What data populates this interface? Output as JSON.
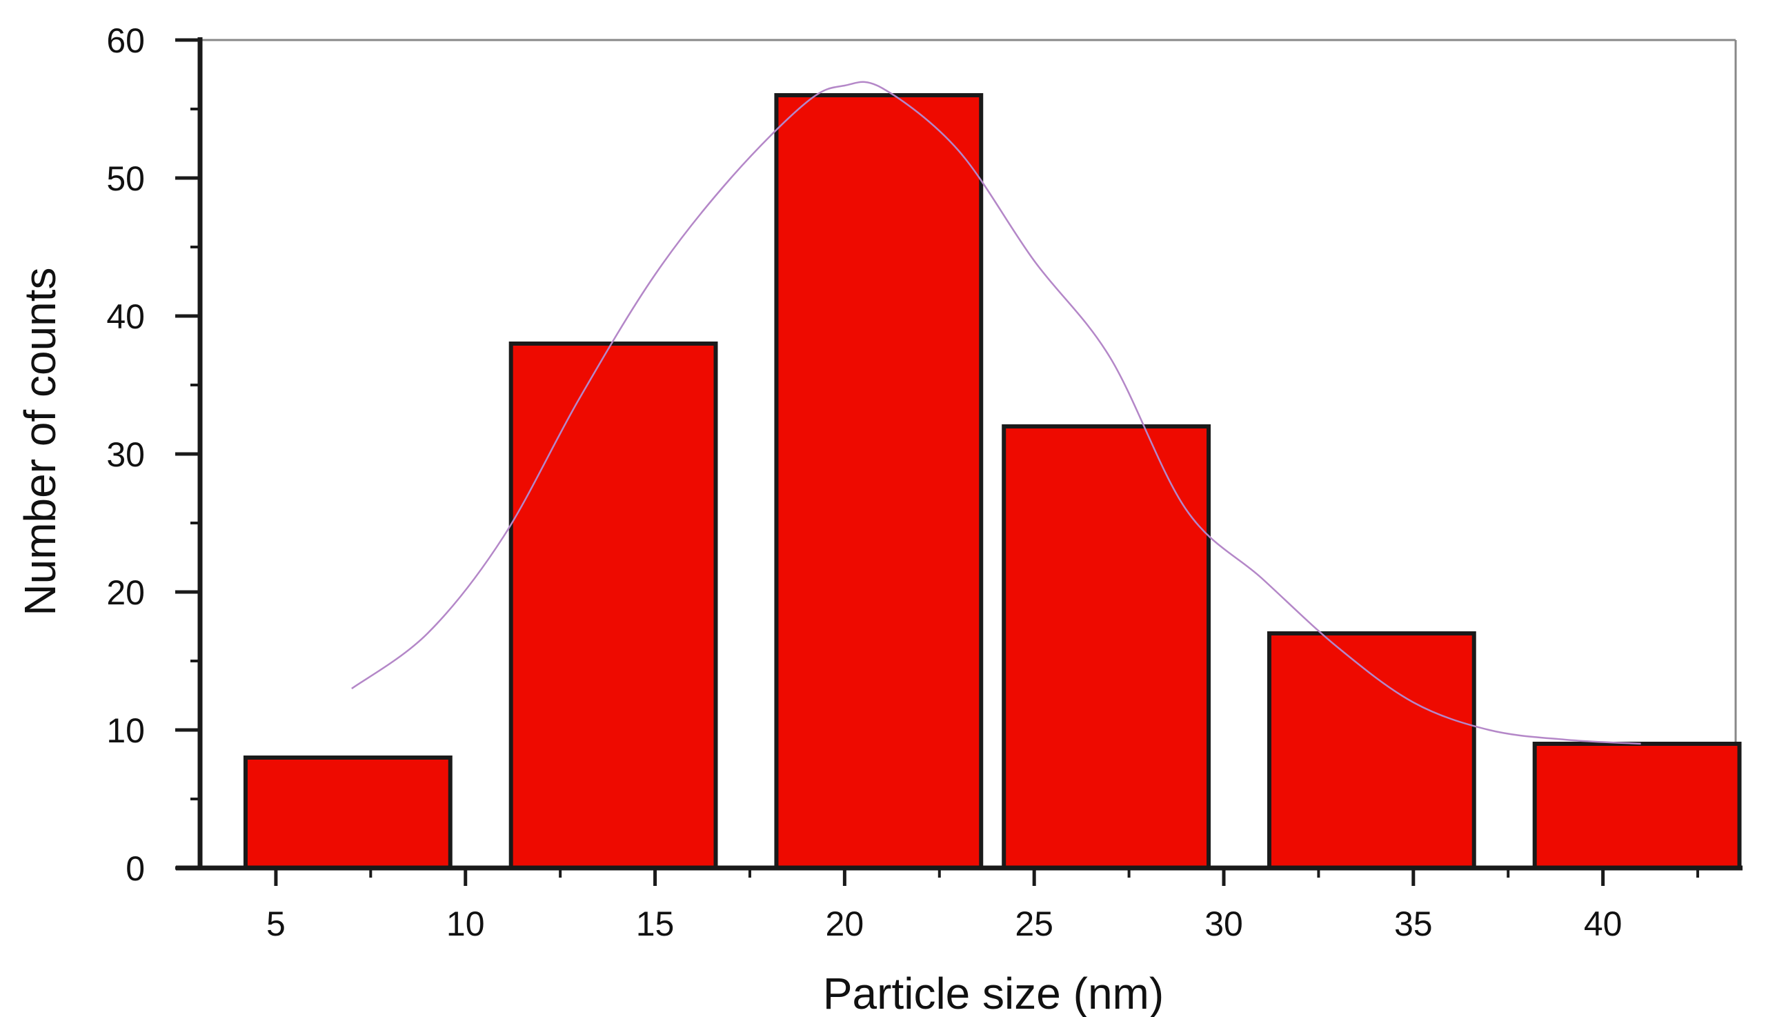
{
  "chart_data": {
    "type": "bar",
    "title": "",
    "xlabel": "Particle size (nm)",
    "ylabel": "Number of counts",
    "xlim": [
      3,
      43.5
    ],
    "ylim": [
      0,
      60
    ],
    "x_ticks": [
      5,
      10,
      15,
      20,
      25,
      30,
      35,
      40
    ],
    "y_ticks": [
      0,
      10,
      20,
      30,
      40,
      50,
      60
    ],
    "bars": [
      {
        "x_start": 4.2,
        "x_end": 9.6,
        "value": 8
      },
      {
        "x_start": 11.2,
        "x_end": 16.6,
        "value": 38
      },
      {
        "x_start": 18.2,
        "x_end": 23.6,
        "value": 56
      },
      {
        "x_start": 24.2,
        "x_end": 29.6,
        "value": 32
      },
      {
        "x_start": 31.2,
        "x_end": 36.6,
        "value": 17
      },
      {
        "x_start": 38.2,
        "x_end": 43.6,
        "value": 9
      }
    ],
    "fit_curve": {
      "x": [
        7,
        9,
        11,
        13,
        15,
        17,
        19,
        20,
        21,
        23,
        25,
        27,
        29,
        31,
        33,
        35,
        37,
        39,
        41
      ],
      "y": [
        13,
        17,
        24,
        34,
        43,
        50,
        55.5,
        56.7,
        56.5,
        52,
        44,
        37,
        26,
        21,
        16,
        12,
        10,
        9.3,
        9
      ]
    },
    "grid": false,
    "colors": {
      "bar_fill": "#ee0a00",
      "bar_stroke": "#1a1a1a",
      "fit_curve": "#b487c8",
      "axis": "#1a1a1a",
      "frame": "#888888"
    }
  }
}
